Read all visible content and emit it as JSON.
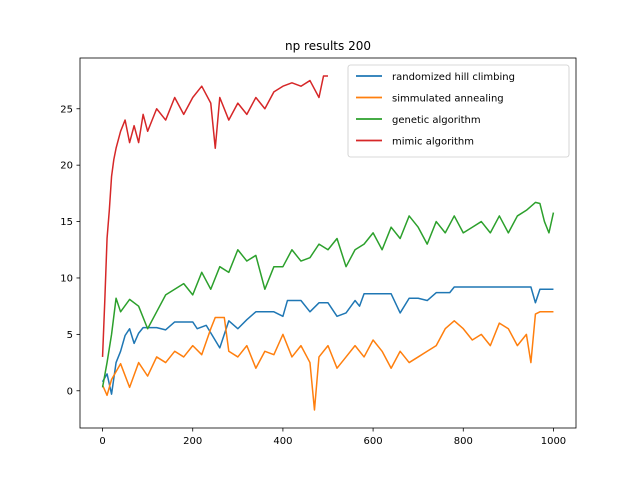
{
  "chart_data": {
    "type": "line",
    "title": "np results 200",
    "xlabel": "",
    "ylabel": "",
    "xlim": [
      -50,
      1050
    ],
    "ylim": [
      -3.3,
      29.5
    ],
    "xticks": [
      0,
      200,
      400,
      600,
      800,
      1000
    ],
    "yticks": [
      0,
      5,
      10,
      15,
      20,
      25
    ],
    "legend_position": "top-right",
    "grid": false,
    "series": [
      {
        "name": "randomized hill climbing",
        "color": "#1f77b4",
        "points": [
          [
            0,
            0.8
          ],
          [
            10,
            1.5
          ],
          [
            20,
            -0.3
          ],
          [
            30,
            2.5
          ],
          [
            40,
            3.5
          ],
          [
            50,
            4.9
          ],
          [
            60,
            5.5
          ],
          [
            70,
            4.2
          ],
          [
            80,
            5.1
          ],
          [
            90,
            5.6
          ],
          [
            100,
            5.6
          ],
          [
            120,
            5.6
          ],
          [
            140,
            5.4
          ],
          [
            160,
            6.1
          ],
          [
            200,
            6.1
          ],
          [
            210,
            5.5
          ],
          [
            230,
            5.8
          ],
          [
            260,
            3.8
          ],
          [
            280,
            6.2
          ],
          [
            300,
            5.5
          ],
          [
            320,
            6.3
          ],
          [
            340,
            7.0
          ],
          [
            360,
            7.0
          ],
          [
            370,
            7.0
          ],
          [
            380,
            7.0
          ],
          [
            400,
            6.6
          ],
          [
            410,
            8.0
          ],
          [
            440,
            8.0
          ],
          [
            460,
            7.0
          ],
          [
            480,
            7.8
          ],
          [
            500,
            7.8
          ],
          [
            520,
            6.6
          ],
          [
            540,
            6.9
          ],
          [
            560,
            8.0
          ],
          [
            570,
            7.5
          ],
          [
            580,
            8.6
          ],
          [
            640,
            8.6
          ],
          [
            660,
            6.9
          ],
          [
            680,
            8.2
          ],
          [
            700,
            8.2
          ],
          [
            720,
            8.0
          ],
          [
            740,
            8.7
          ],
          [
            770,
            8.7
          ],
          [
            780,
            9.2
          ],
          [
            950,
            9.2
          ],
          [
            960,
            7.8
          ],
          [
            970,
            9.0
          ],
          [
            1000,
            9.0
          ]
        ]
      },
      {
        "name": "simmulated annealing",
        "color": "#ff7f0e",
        "points": [
          [
            0,
            0.5
          ],
          [
            10,
            -0.4
          ],
          [
            20,
            1.0
          ],
          [
            30,
            1.7
          ],
          [
            40,
            2.4
          ],
          [
            60,
            0.3
          ],
          [
            80,
            2.5
          ],
          [
            100,
            1.3
          ],
          [
            120,
            3.0
          ],
          [
            140,
            2.5
          ],
          [
            160,
            3.5
          ],
          [
            180,
            3.0
          ],
          [
            200,
            4.0
          ],
          [
            220,
            3.2
          ],
          [
            240,
            5.5
          ],
          [
            250,
            6.5
          ],
          [
            270,
            6.5
          ],
          [
            280,
            3.5
          ],
          [
            300,
            3.0
          ],
          [
            320,
            4.0
          ],
          [
            340,
            2.0
          ],
          [
            360,
            3.5
          ],
          [
            380,
            3.2
          ],
          [
            400,
            5.0
          ],
          [
            420,
            3.0
          ],
          [
            440,
            4.0
          ],
          [
            460,
            2.5
          ],
          [
            470,
            -1.7
          ],
          [
            480,
            3.0
          ],
          [
            500,
            4.0
          ],
          [
            520,
            2.0
          ],
          [
            540,
            3.0
          ],
          [
            560,
            4.0
          ],
          [
            580,
            3.0
          ],
          [
            600,
            4.5
          ],
          [
            620,
            3.5
          ],
          [
            640,
            2.0
          ],
          [
            660,
            3.5
          ],
          [
            680,
            2.5
          ],
          [
            700,
            3.0
          ],
          [
            720,
            3.5
          ],
          [
            740,
            4.0
          ],
          [
            760,
            5.5
          ],
          [
            780,
            6.2
          ],
          [
            800,
            5.5
          ],
          [
            820,
            4.5
          ],
          [
            840,
            5.0
          ],
          [
            860,
            4.0
          ],
          [
            880,
            6.0
          ],
          [
            900,
            5.5
          ],
          [
            920,
            4.0
          ],
          [
            940,
            5.0
          ],
          [
            950,
            2.5
          ],
          [
            960,
            6.8
          ],
          [
            970,
            7.0
          ],
          [
            1000,
            7.0
          ]
        ]
      },
      {
        "name": "genetic algorithm",
        "color": "#2ca02c",
        "points": [
          [
            0,
            0.3
          ],
          [
            10,
            2.5
          ],
          [
            20,
            5.0
          ],
          [
            30,
            8.2
          ],
          [
            40,
            7.0
          ],
          [
            60,
            8.1
          ],
          [
            80,
            7.5
          ],
          [
            100,
            5.5
          ],
          [
            120,
            7.0
          ],
          [
            140,
            8.5
          ],
          [
            160,
            9.0
          ],
          [
            180,
            9.5
          ],
          [
            200,
            8.5
          ],
          [
            220,
            10.5
          ],
          [
            240,
            9.0
          ],
          [
            260,
            11.0
          ],
          [
            280,
            10.5
          ],
          [
            300,
            12.5
          ],
          [
            320,
            11.5
          ],
          [
            340,
            12.0
          ],
          [
            360,
            9.0
          ],
          [
            380,
            11.0
          ],
          [
            400,
            11.0
          ],
          [
            420,
            12.5
          ],
          [
            440,
            11.5
          ],
          [
            460,
            11.8
          ],
          [
            480,
            13.0
          ],
          [
            500,
            12.5
          ],
          [
            520,
            13.5
          ],
          [
            540,
            11.0
          ],
          [
            560,
            12.5
          ],
          [
            580,
            13.0
          ],
          [
            600,
            14.0
          ],
          [
            620,
            12.5
          ],
          [
            640,
            14.5
          ],
          [
            660,
            13.5
          ],
          [
            680,
            15.5
          ],
          [
            700,
            14.5
          ],
          [
            720,
            13.0
          ],
          [
            740,
            15.0
          ],
          [
            760,
            14.0
          ],
          [
            780,
            15.5
          ],
          [
            800,
            14.0
          ],
          [
            820,
            14.5
          ],
          [
            840,
            15.0
          ],
          [
            860,
            14.0
          ],
          [
            880,
            15.5
          ],
          [
            900,
            14.0
          ],
          [
            920,
            15.5
          ],
          [
            940,
            16.0
          ],
          [
            960,
            16.7
          ],
          [
            970,
            16.6
          ],
          [
            980,
            15.0
          ],
          [
            990,
            14.0
          ],
          [
            1000,
            15.8
          ]
        ]
      },
      {
        "name": "mimic algorithm",
        "color": "#d62728",
        "points": [
          [
            0,
            3.0
          ],
          [
            5,
            8.0
          ],
          [
            10,
            13.5
          ],
          [
            15,
            16.0
          ],
          [
            20,
            19.0
          ],
          [
            25,
            20.5
          ],
          [
            30,
            21.5
          ],
          [
            40,
            23.0
          ],
          [
            50,
            24.0
          ],
          [
            60,
            22.0
          ],
          [
            70,
            23.5
          ],
          [
            80,
            22.0
          ],
          [
            90,
            24.5
          ],
          [
            100,
            23.0
          ],
          [
            120,
            25.0
          ],
          [
            140,
            24.0
          ],
          [
            160,
            26.0
          ],
          [
            180,
            24.5
          ],
          [
            200,
            26.0
          ],
          [
            220,
            27.0
          ],
          [
            240,
            25.5
          ],
          [
            250,
            21.5
          ],
          [
            260,
            26.0
          ],
          [
            280,
            24.0
          ],
          [
            300,
            25.5
          ],
          [
            320,
            24.5
          ],
          [
            340,
            26.0
          ],
          [
            360,
            25.0
          ],
          [
            380,
            26.5
          ],
          [
            400,
            27.0
          ],
          [
            420,
            27.3
          ],
          [
            440,
            27.0
          ],
          [
            460,
            27.5
          ],
          [
            480,
            26.0
          ],
          [
            490,
            27.9
          ],
          [
            500,
            27.9
          ]
        ]
      }
    ]
  }
}
